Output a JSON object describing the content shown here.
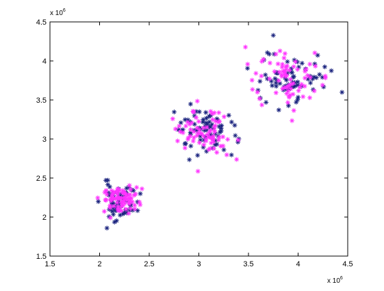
{
  "chart_data": {
    "type": "scatter",
    "title": "",
    "xlabel": "",
    "ylabel": "",
    "xlim": [
      1.5,
      4.5
    ],
    "ylim": [
      1.5,
      4.5
    ],
    "x_ticks": [
      "1.5",
      "2",
      "2.5",
      "3",
      "3.5",
      "4",
      "4.5"
    ],
    "y_ticks": [
      "1.5",
      "2",
      "2.5",
      "3",
      "3.5",
      "4",
      "4.5"
    ],
    "x_exponent": {
      "base": "x 10",
      "power": "6"
    },
    "y_exponent": {
      "base": "x 10",
      "power": "6"
    },
    "axis_scale_factor": 1000000,
    "grid": false,
    "legend": "none",
    "marker": "asterisk",
    "series": [
      {
        "color": "#1a237e",
        "clusters": [
          {
            "center": [
              2.2,
              2.2
            ],
            "spread": [
              0.09,
              0.12
            ],
            "count": 60,
            "seed": 11
          },
          {
            "center": [
              3.05,
              3.1
            ],
            "spread": [
              0.16,
              0.17
            ],
            "count": 70,
            "seed": 23
          },
          {
            "center": [
              3.95,
              3.8
            ],
            "spread": [
              0.17,
              0.17
            ],
            "count": 70,
            "seed": 37
          }
        ]
      },
      {
        "color": "#ff33ff",
        "clusters": [
          {
            "center": [
              2.2,
              2.22
            ],
            "spread": [
              0.1,
              0.08
            ],
            "count": 80,
            "seed": 53
          },
          {
            "center": [
              3.05,
              3.1
            ],
            "spread": [
              0.15,
              0.17
            ],
            "count": 75,
            "seed": 71
          },
          {
            "center": [
              3.85,
              3.8
            ],
            "spread": [
              0.17,
              0.18
            ],
            "count": 75,
            "seed": 89
          }
        ]
      }
    ]
  }
}
